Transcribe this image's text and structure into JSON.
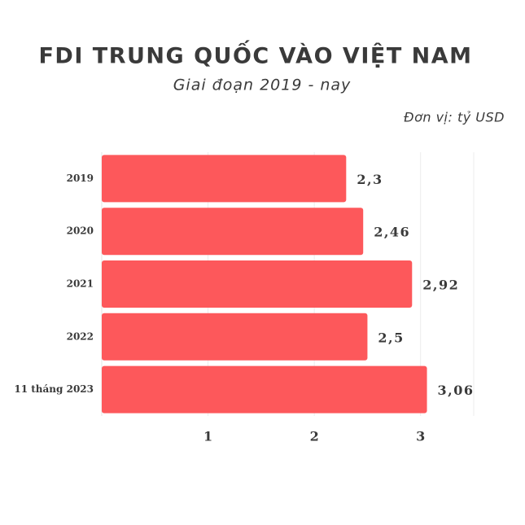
{
  "chart_data": {
    "type": "bar",
    "orientation": "horizontal",
    "title": "FDI TRUNG QUỐC VÀO VIỆT NAM",
    "subtitle": "Giai đoạn 2019 - nay",
    "unit_label": "Đơn vị: tỷ USD",
    "categories": [
      "2019",
      "2020",
      "2021",
      "2022",
      "11 tháng 2023"
    ],
    "values": [
      2.3,
      2.46,
      2.92,
      2.5,
      3.06
    ],
    "value_labels": [
      "2,3",
      "2,46",
      "2,92",
      "2,5",
      "3,06"
    ],
    "color": "#fd585b",
    "xlim": [
      0,
      3.5
    ],
    "xticks": [
      1,
      2,
      3
    ],
    "grid": true
  }
}
